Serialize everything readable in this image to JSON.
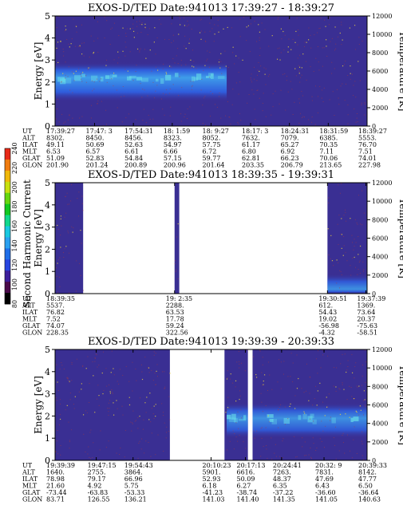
{
  "colors": {
    "background": "#3a2f93",
    "data_gap": "#ffffff",
    "noise_dot": "#b03a3a",
    "trace": "#e8d040",
    "band_mid": "#2f5fe0",
    "band_core": "#3fa2ee",
    "band_hot": "#66d9e8"
  },
  "colorbar": {
    "label": "Second Harmonic Current",
    "ticks": [
      "80",
      "100",
      "120",
      "140",
      "160",
      "180",
      "200",
      "220",
      "240"
    ],
    "colors": [
      "#000000",
      "#4a0a4a",
      "#3d1f9c",
      "#2745e0",
      "#1f6ee8",
      "#2aa0f0",
      "#19c8e0",
      "#11d88c",
      "#12c820",
      "#66d610",
      "#c8e010",
      "#f0b80a",
      "#f07c10",
      "#e82a18"
    ]
  },
  "chart_data": [
    {
      "type": "heatmap",
      "title": "EXOS-D/TED   Date:941013   17:39:27 - 18:39:27",
      "ylabel": "Energy [eV]",
      "y2label": "Temperature [K]",
      "ylim": [
        0,
        5
      ],
      "y2lim": [
        0,
        12000
      ],
      "yticks": [
        "0",
        "1",
        "2",
        "3",
        "4",
        "5"
      ],
      "y2ticks": [
        "0",
        "2000",
        "4000",
        "6000",
        "8000",
        "10000",
        "12000"
      ],
      "data_intervals": [
        [
          0,
          1
        ]
      ],
      "band": {
        "low_eV": 1.1,
        "high_eV": 2.9,
        "peak_eV": 2.2,
        "fade_start": 0.0,
        "fade_end": 0.55
      },
      "trace_eV": 2.8,
      "table": {
        "rows": [
          {
            "label": "UT",
            "values": [
              "17:39:27",
              "17:47: 3",
              "17:54:31",
              "18: 1:59",
              "18: 9:27",
              "18:17: 3",
              "18:24:31",
              "18:31:59",
              "18:39:27"
            ]
          },
          {
            "label": "ALT",
            "values": [
              "8302.",
              "8450.",
              "8456.",
              "8323.",
              "8052.",
              "7632.",
              "7079.",
              "6385.",
              "5553."
            ]
          },
          {
            "label": "ILAT",
            "values": [
              "49.11",
              "50.69",
              "52.63",
              "54.97",
              "57.75",
              "61.17",
              "65.27",
              "70.35",
              "76.70"
            ]
          },
          {
            "label": "MLT",
            "values": [
              "6.53",
              "6.57",
              "6.61",
              "6.66",
              "6.72",
              "6.80",
              "6.92",
              "7.11",
              "7.51"
            ]
          },
          {
            "label": "GLAT",
            "values": [
              "51.09",
              "52.83",
              "54.84",
              "57.15",
              "59.77",
              "62.81",
              "66.23",
              "70.06",
              "74.01"
            ]
          },
          {
            "label": "GLON",
            "values": [
              "201.90",
              "201.24",
              "200.89",
              "200.96",
              "201.64",
              "203.35",
              "206.79",
              "213.65",
              "227.98"
            ]
          }
        ]
      }
    },
    {
      "type": "heatmap",
      "title": "EXOS-D/TED   Date:941013   18:39:35 - 19:39:31",
      "ylabel": "Energy [eV]",
      "y2label": "Temperature [K]",
      "ylim": [
        0,
        5
      ],
      "y2lim": [
        0,
        12000
      ],
      "yticks": [
        "0",
        "1",
        "2",
        "3",
        "4",
        "5"
      ],
      "y2ticks": [
        "0",
        "2000",
        "4000",
        "6000",
        "8000",
        "10000",
        "12000"
      ],
      "data_intervals": [
        [
          0,
          0.09
        ],
        [
          0.383,
          0.398
        ],
        [
          0.873,
          1
        ]
      ],
      "band": {
        "low_eV": 0.0,
        "high_eV": 0.9,
        "peak_eV": 0.2,
        "fade_start": 0.87,
        "fade_end": 1.0
      },
      "trace_eV": 1.6,
      "table": {
        "rows": [
          {
            "label": "UT",
            "values": [
              "18:39:35",
              "19: 2:35",
              "19:30:51",
              "19:37:39"
            ]
          },
          {
            "label": "ALT",
            "values": [
              "5537.",
              "2288.",
              "612.",
              "1369."
            ]
          },
          {
            "label": "ILAT",
            "values": [
              "76.82",
              "63.53",
              "54.43",
              "73.64"
            ]
          },
          {
            "label": "MLT",
            "values": [
              "7.52",
              "17.78",
              "19.02",
              "20.37"
            ]
          },
          {
            "label": "GLAT",
            "values": [
              "74.07",
              "59.24",
              "-56.98",
              "-75.63"
            ]
          },
          {
            "label": "GLON",
            "values": [
              "228.35",
              "322.56",
              "-4.32",
              "-58.51"
            ]
          }
        ]
      }
    },
    {
      "type": "heatmap",
      "title": "EXOS-D/TED   Date:941013   19:39:39 - 20:39:33",
      "ylabel": "Energy [eV]",
      "y2label": "Temperature [K]",
      "ylim": [
        0,
        5
      ],
      "y2lim": [
        0,
        12000
      ],
      "yticks": [
        "0",
        "1",
        "2",
        "3",
        "4",
        "5"
      ],
      "y2ticks": [
        "0",
        "2000",
        "4000",
        "6000",
        "8000",
        "10000",
        "12000"
      ],
      "data_intervals": [
        [
          0,
          0.368
        ],
        [
          0.543,
          0.618
        ],
        [
          0.633,
          1
        ]
      ],
      "band": {
        "low_eV": 1.0,
        "high_eV": 2.6,
        "peak_eV": 1.9,
        "fade_start": 0.55,
        "fade_end": 1.0
      },
      "trace_eV": 2.3,
      "table": {
        "rows": [
          {
            "label": "UT",
            "values": [
              "19:39:39",
              "19:47:15",
              "19:54:43",
              "20:10:23",
              "20:17:13",
              "20:24:41",
              "20:32: 9",
              "20:39:33"
            ]
          },
          {
            "label": "ALT",
            "values": [
              "1640.",
              "2755.",
              "3864.",
              "5901.",
              "6616.",
              "7263.",
              "7831.",
              "8142."
            ]
          },
          {
            "label": "ILAT",
            "values": [
              "78.98",
              "79.17",
              "66.96",
              "52.93",
              "50.09",
              "48.37",
              "47.69",
              "47.77"
            ]
          },
          {
            "label": "MLT",
            "values": [
              "21.60",
              "4.92",
              "5.75",
              "6.18",
              "6.27",
              "6.35",
              "6.43",
              "6.50"
            ]
          },
          {
            "label": "GLAT",
            "values": [
              "-73.44",
              "-63.83",
              "-53.33",
              "-41.23",
              "-38.74",
              "-37.22",
              "-36.60",
              "-36.64"
            ]
          },
          {
            "label": "GLON",
            "values": [
              "83.71",
              "126.55",
              "136.21",
              "141.03",
              "141.40",
              "141.35",
              "141.05",
              "140.63"
            ]
          }
        ]
      }
    }
  ]
}
